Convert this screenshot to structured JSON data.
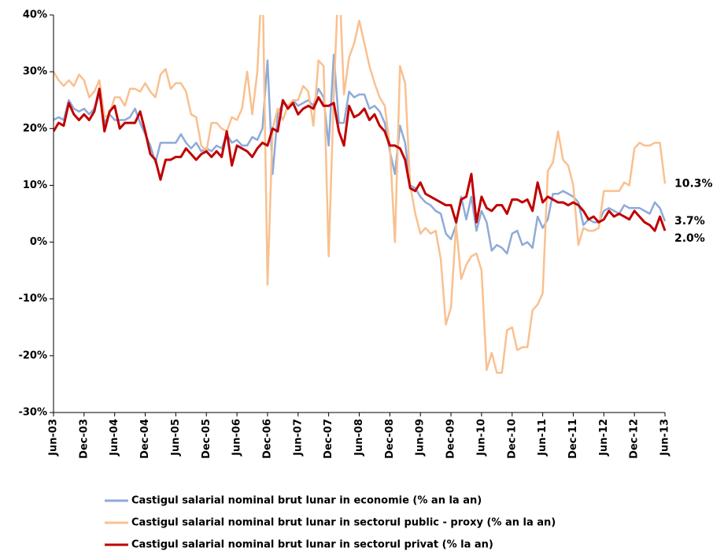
{
  "chart_data": {
    "type": "line",
    "categories": [
      "Jun-03",
      null,
      null,
      null,
      null,
      null,
      "Dec-03",
      null,
      null,
      null,
      null,
      null,
      "Jun-04",
      null,
      null,
      null,
      null,
      null,
      "Dec-04",
      null,
      null,
      null,
      null,
      null,
      "Jun-05",
      null,
      null,
      null,
      null,
      null,
      "Dec-05",
      null,
      null,
      null,
      null,
      null,
      "Jun-06",
      null,
      null,
      null,
      null,
      null,
      "Dec-06",
      null,
      null,
      null,
      null,
      null,
      "Jun-07",
      null,
      null,
      null,
      null,
      null,
      "Dec-07",
      null,
      null,
      null,
      null,
      null,
      "Jun-08",
      null,
      null,
      null,
      null,
      null,
      "Dec-08",
      null,
      null,
      null,
      null,
      null,
      "Jun-09",
      null,
      null,
      null,
      null,
      null,
      "Dec-09",
      null,
      null,
      null,
      null,
      null,
      "Jun-10",
      null,
      null,
      null,
      null,
      null,
      "Dec-10",
      null,
      null,
      null,
      null,
      null,
      "Jun-11",
      null,
      null,
      null,
      null,
      null,
      "Dec-11",
      null,
      null,
      null,
      null,
      null,
      "Jun-12",
      null,
      null,
      null,
      null,
      null,
      "Dec-12",
      null,
      null,
      null,
      null,
      null,
      "Jun-13"
    ],
    "ylim": [
      -30,
      40
    ],
    "yticks": [
      {
        "value": -30,
        "label": "-30%"
      },
      {
        "value": -20,
        "label": "-20%"
      },
      {
        "value": -10,
        "label": "-10%"
      },
      {
        "value": 0,
        "label": "0%"
      },
      {
        "value": 10,
        "label": "10%"
      },
      {
        "value": 20,
        "label": "20%"
      },
      {
        "value": 30,
        "label": "30%"
      },
      {
        "value": 40,
        "label": "40%"
      }
    ],
    "series": [
      {
        "name": "Castigul salarial nominal brut lunar in economie (% an la an)",
        "color": "#8eaad8",
        "value_label_color": "#8eaad8",
        "values": [
          21.5,
          22,
          21.5,
          25,
          23.5,
          23,
          23.5,
          22.5,
          23.5,
          26,
          21,
          22.5,
          21.5,
          21.5,
          21.5,
          22,
          23.5,
          21,
          19,
          17,
          14,
          17.5,
          17.5,
          17.5,
          17.5,
          19,
          17.5,
          16.5,
          17.5,
          16,
          16.5,
          16,
          17,
          16.5,
          19,
          17.5,
          18,
          17,
          17,
          18.5,
          18,
          20,
          32,
          12,
          22.5,
          24.5,
          24,
          25,
          24,
          24.5,
          25,
          24,
          27,
          25.5,
          17,
          33,
          21,
          21,
          26.5,
          25.5,
          26,
          26,
          23.5,
          24,
          23,
          21,
          16,
          12,
          20.5,
          17.5,
          10,
          9.5,
          8,
          7,
          6.5,
          5.5,
          5,
          1.5,
          0.5,
          3,
          8,
          4,
          8,
          2,
          5.5,
          3.5,
          -1.5,
          -0.5,
          -1,
          -2,
          1.5,
          2,
          -0.5,
          0,
          -1,
          4.5,
          2.5,
          4,
          8.5,
          8.5,
          9,
          8.5,
          8,
          7,
          3,
          4,
          3.5,
          3.5,
          5.5,
          6,
          5.5,
          5,
          6.5,
          6,
          6,
          6,
          5.5,
          5,
          7,
          6,
          3.7
        ],
        "value_labels": [
          null,
          null,
          null,
          null,
          null,
          null,
          null,
          null,
          null,
          null,
          null,
          null,
          null,
          null,
          null,
          null,
          null,
          null,
          null,
          null,
          null,
          null,
          null,
          null,
          null,
          null,
          null,
          null,
          null,
          null,
          null,
          null,
          null,
          null,
          null,
          null,
          null,
          null,
          null,
          null,
          null,
          null,
          null,
          null,
          null,
          null,
          null,
          null,
          null,
          null,
          null,
          null,
          null,
          null,
          null,
          null,
          null,
          null,
          null,
          null,
          null,
          null,
          null,
          null,
          null,
          null,
          null,
          null,
          null,
          null,
          null,
          null,
          null,
          null,
          null,
          null,
          null,
          null,
          null,
          null,
          null,
          null,
          null,
          null,
          null,
          null,
          null,
          null,
          null,
          null,
          null,
          null,
          null,
          null,
          null,
          null,
          null,
          null,
          null,
          null,
          null,
          null,
          null,
          null,
          null,
          null,
          null,
          null,
          null,
          null,
          null,
          null,
          null,
          null,
          null,
          null,
          null,
          null,
          null,
          null,
          "3.7%"
        ]
      },
      {
        "name": "Castigul salarial nominal brut lunar in sectorul public - proxy (% an la an)",
        "color": "#f9c08f",
        "value_label_color": "#ffc000",
        "values": [
          30,
          28.5,
          27.5,
          28.5,
          27.5,
          29.5,
          28.5,
          25.5,
          26.5,
          28.5,
          22,
          22.5,
          25.5,
          25.5,
          24,
          27,
          27,
          26.5,
          28,
          26.5,
          25.5,
          29.5,
          30.5,
          27,
          28,
          28,
          26.5,
          22.5,
          22,
          17,
          16,
          21,
          21,
          20,
          19.5,
          22,
          21.5,
          23.5,
          30,
          22.5,
          30,
          48,
          -7.5,
          20,
          23.5,
          21.5,
          24,
          25,
          25,
          27.5,
          26.5,
          20.5,
          32,
          31,
          -2.5,
          26,
          48,
          26,
          32.5,
          35,
          39,
          35,
          31,
          28,
          25.5,
          24,
          17,
          0,
          31,
          28,
          10,
          5,
          1.5,
          2.5,
          1.5,
          2,
          -3,
          -14.5,
          -11.5,
          3,
          -6.5,
          -4,
          -2.5,
          -2,
          -5,
          -22.5,
          -19.5,
          -23,
          -23,
          -15.5,
          -15,
          -19,
          -18.5,
          -18.5,
          -12,
          -11,
          -9,
          12.5,
          14,
          19.5,
          14.5,
          13.5,
          10,
          -0.5,
          2.5,
          2,
          2,
          2.5,
          9,
          9,
          9,
          9,
          10.5,
          10,
          16.5,
          17.5,
          17,
          17,
          17.5,
          17.5,
          10.3
        ],
        "value_labels": [
          null,
          null,
          null,
          null,
          null,
          null,
          null,
          null,
          null,
          null,
          null,
          null,
          null,
          null,
          null,
          null,
          null,
          null,
          null,
          null,
          null,
          null,
          null,
          null,
          null,
          null,
          null,
          null,
          null,
          null,
          null,
          null,
          null,
          null,
          null,
          null,
          null,
          null,
          null,
          null,
          null,
          null,
          null,
          null,
          null,
          null,
          null,
          null,
          null,
          null,
          null,
          null,
          null,
          null,
          null,
          null,
          null,
          null,
          null,
          null,
          null,
          null,
          null,
          null,
          null,
          null,
          null,
          null,
          null,
          null,
          null,
          null,
          null,
          null,
          null,
          null,
          null,
          null,
          null,
          null,
          null,
          null,
          null,
          null,
          null,
          null,
          null,
          null,
          null,
          null,
          null,
          null,
          null,
          null,
          null,
          null,
          null,
          null,
          null,
          null,
          null,
          null,
          null,
          null,
          null,
          null,
          null,
          null,
          null,
          null,
          null,
          null,
          null,
          null,
          null,
          null,
          null,
          null,
          null,
          null,
          "10.3%"
        ]
      },
      {
        "name": "Castigul salarial nominal brut lunar in sectorul privat (% la an)",
        "color": "#c00000",
        "value_label_color": "#c00000",
        "values": [
          19.5,
          21,
          20.5,
          24.5,
          22.5,
          21.5,
          22.5,
          21.5,
          23,
          27,
          19.5,
          23,
          24,
          20,
          21,
          21,
          21,
          23,
          19.5,
          15.5,
          14.5,
          11,
          14.5,
          14.5,
          15,
          15,
          16.5,
          15.5,
          14.5,
          15.5,
          16,
          15,
          16,
          15,
          19.5,
          13.5,
          17,
          16.5,
          16,
          15,
          16.5,
          17.5,
          17,
          20,
          19.5,
          25,
          23.5,
          24.5,
          22.5,
          23.5,
          24,
          23.5,
          25.5,
          24,
          24,
          24.5,
          19.5,
          17,
          24,
          22,
          22.5,
          23.5,
          21.5,
          22.5,
          20.5,
          19.5,
          17,
          17,
          16.5,
          14.5,
          9.5,
          9,
          10.5,
          8.5,
          8,
          7.5,
          7,
          6.5,
          6.5,
          3.5,
          7.5,
          8,
          12,
          3.5,
          8,
          6,
          5.5,
          6.5,
          6.5,
          5,
          7.5,
          7.5,
          7,
          7.5,
          5.5,
          10.5,
          7,
          8,
          7.5,
          7,
          7,
          6.5,
          7,
          6.5,
          5.5,
          4,
          4.5,
          3.5,
          4,
          5.5,
          4.5,
          5,
          4.5,
          4,
          5.5,
          4.5,
          3.5,
          3,
          2,
          4.5,
          2.0
        ],
        "value_labels": [
          null,
          null,
          null,
          null,
          null,
          null,
          null,
          null,
          null,
          null,
          null,
          null,
          null,
          null,
          null,
          null,
          null,
          null,
          null,
          null,
          null,
          null,
          null,
          null,
          null,
          null,
          null,
          null,
          null,
          null,
          null,
          null,
          null,
          null,
          null,
          null,
          null,
          null,
          null,
          null,
          null,
          null,
          null,
          null,
          null,
          null,
          null,
          null,
          null,
          null,
          null,
          null,
          null,
          null,
          null,
          null,
          null,
          null,
          null,
          null,
          null,
          null,
          null,
          null,
          null,
          null,
          null,
          null,
          null,
          null,
          null,
          null,
          null,
          null,
          null,
          null,
          null,
          null,
          null,
          null,
          null,
          null,
          null,
          null,
          null,
          null,
          null,
          null,
          null,
          null,
          null,
          null,
          null,
          null,
          null,
          null,
          null,
          null,
          null,
          null,
          null,
          null,
          null,
          null,
          null,
          null,
          null,
          null,
          null,
          null,
          null,
          null,
          null,
          null,
          null,
          null,
          null,
          null,
          null,
          null,
          "2.0%"
        ]
      }
    ],
    "legend": "bottom"
  }
}
